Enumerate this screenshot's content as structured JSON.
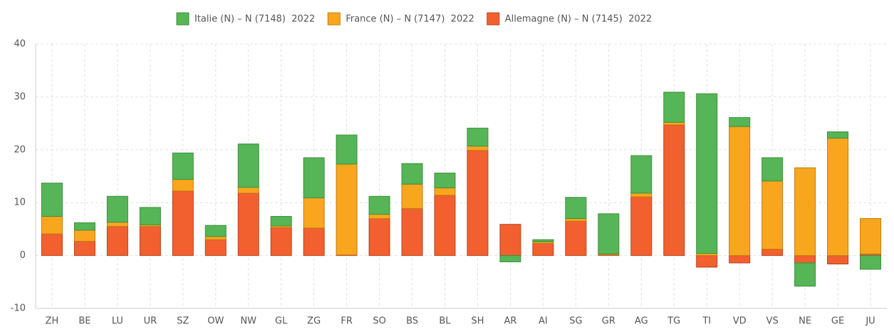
{
  "chart_data": {
    "type": "stacked-bar",
    "categories": [
      "ZH",
      "BE",
      "LU",
      "UR",
      "SZ",
      "OW",
      "NW",
      "GL",
      "ZG",
      "FR",
      "SO",
      "BS",
      "BL",
      "SH",
      "AR",
      "AI",
      "SG",
      "GR",
      "AG",
      "TG",
      "TI",
      "VD",
      "VS",
      "NE",
      "GE",
      "JU"
    ],
    "series": [
      {
        "name": "Italie (N) – N (7148)  2022",
        "color": "#56b556",
        "stroke": "#3f8f3f",
        "values": [
          6.3,
          1.4,
          4.9,
          3.3,
          5.0,
          2.1,
          8.2,
          1.8,
          7.6,
          5.5,
          3.4,
          3.9,
          2.8,
          3.4,
          -1.2,
          0.4,
          4.0,
          7.6,
          7.1,
          5.7,
          30.2,
          1.7,
          4.4,
          -4.4,
          1.2,
          -2.6
        ]
      },
      {
        "name": "France (N) – N (7147)  2022",
        "color": "#f9a61f",
        "stroke": "#c07d10",
        "values": [
          3.3,
          2.1,
          0.8,
          0.3,
          2.2,
          0.6,
          1.1,
          0.3,
          5.7,
          17.2,
          0.8,
          4.6,
          1.4,
          0.8,
          0,
          0.3,
          0.5,
          0.2,
          0.7,
          0.5,
          0.4,
          24.4,
          12.9,
          16.6,
          22.2,
          6.7
        ]
      },
      {
        "name": "Allemagne (N) – N (7145)  2022",
        "color": "#f26030",
        "stroke": "#b8431c",
        "values": [
          4.1,
          2.7,
          5.5,
          5.5,
          12.2,
          3.0,
          11.8,
          5.3,
          5.2,
          0.1,
          7.0,
          8.9,
          11.4,
          19.9,
          5.9,
          2.3,
          6.5,
          0.1,
          11.1,
          24.7,
          -2.2,
          -1.4,
          1.2,
          -1.4,
          -1.6,
          0.3
        ]
      }
    ],
    "ylim": [
      -10,
      40
    ],
    "yticks": [
      -10,
      0,
      10,
      20,
      30,
      40
    ],
    "grid": true
  }
}
